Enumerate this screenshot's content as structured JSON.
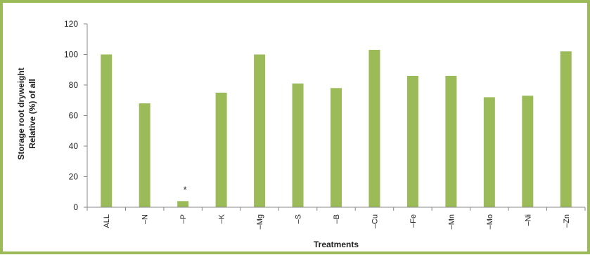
{
  "chart_data": {
    "type": "bar",
    "categories": [
      "ALL",
      "–N",
      "–P",
      "–K",
      "–Mg",
      "–S",
      "–B",
      "–Cu",
      "–Fe",
      "–Mn",
      "–Mo",
      "–Ni",
      "–Zn"
    ],
    "values": [
      100,
      68,
      4,
      75,
      100,
      81,
      78,
      103,
      86,
      86,
      72,
      73,
      102
    ],
    "xlabel": "Treatments",
    "ylabel_lines": [
      "Storage root dryweight",
      "Relative (%) of all"
    ],
    "yticks": [
      0,
      20,
      40,
      60,
      80,
      100,
      120
    ],
    "ylim": [
      0,
      120
    ],
    "annotations": [
      {
        "category": "–P",
        "text": "*"
      }
    ],
    "bar_color": "#9bbb59",
    "border_color": "#9bbb59",
    "grid": false,
    "legend": "none"
  }
}
